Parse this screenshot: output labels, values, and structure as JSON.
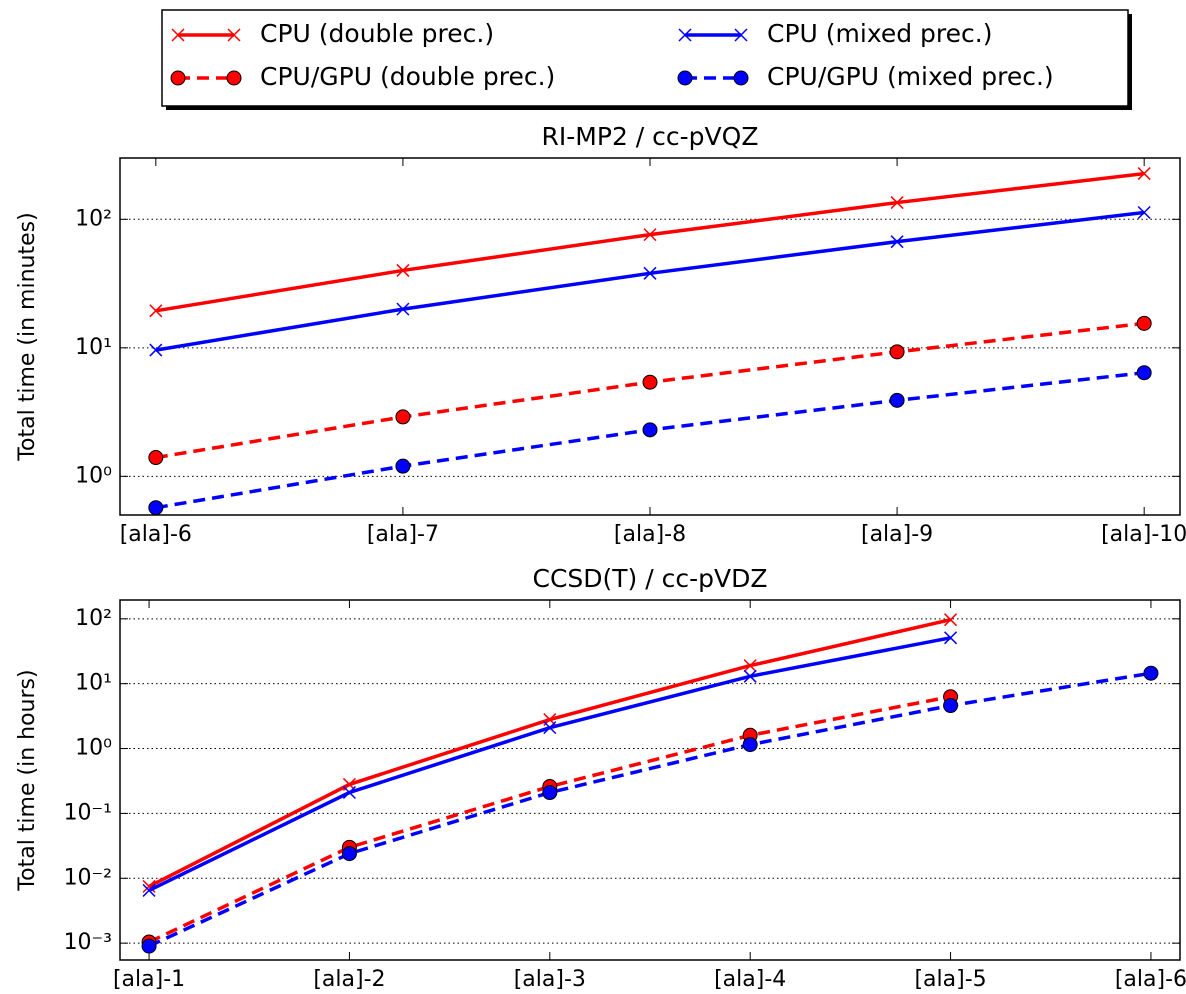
{
  "chart_data": [
    {
      "type": "line",
      "title": "RI-MP2 / cc-pVQZ",
      "y_label": "Total time (in minutes)",
      "legend": "top",
      "log_y": true,
      "grid": true,
      "categories": [
        "[ala]-6",
        "[ala]-7",
        "[ala]-8",
        "[ala]-9",
        "[ala]-10"
      ],
      "ylim": [
        0.5,
        300
      ],
      "yticks": [
        {
          "value": 1,
          "label": "10⁰"
        },
        {
          "value": 10,
          "label": "10¹"
        },
        {
          "value": 100,
          "label": "10²"
        }
      ],
      "series": [
        {
          "name": "CPU (double prec.)",
          "color": "#ff0000",
          "linestyle": "solid",
          "marker": "x",
          "values": [
            19.4,
            40,
            76,
            135,
            227
          ]
        },
        {
          "name": "CPU (mixed prec.)",
          "color": "#0000ff",
          "linestyle": "solid",
          "marker": "x",
          "values": [
            9.6,
            20,
            38,
            67,
            113
          ]
        },
        {
          "name": "CPU/GPU (double prec.)",
          "color": "#ff0000",
          "linestyle": "dashed",
          "marker": "o",
          "values": [
            1.4,
            2.9,
            5.4,
            9.3,
            15.5
          ]
        },
        {
          "name": "CPU/GPU (mixed prec.)",
          "color": "#0000ff",
          "linestyle": "dashed",
          "marker": "o",
          "values": [
            0.57,
            1.2,
            2.3,
            3.9,
            6.4
          ]
        }
      ]
    },
    {
      "type": "line",
      "title": "CCSD(T) / cc-pVDZ",
      "y_label": "Total time (in hours)",
      "log_y": true,
      "grid": true,
      "categories": [
        "[ala]-1",
        "[ala]-2",
        "[ala]-3",
        "[ala]-4",
        "[ala]-5",
        "[ala]-6"
      ],
      "ylim": [
        0.00055,
        195
      ],
      "yticks": [
        {
          "value": 0.001,
          "label": "10⁻³"
        },
        {
          "value": 0.01,
          "label": "10⁻²"
        },
        {
          "value": 0.1,
          "label": "10⁻¹"
        },
        {
          "value": 1,
          "label": "10⁰"
        },
        {
          "value": 10,
          "label": "10¹"
        },
        {
          "value": 100,
          "label": "10²"
        }
      ],
      "series": [
        {
          "color": "#ff0000",
          "linestyle": "solid",
          "marker": "x",
          "values": [
            0.0075,
            0.28,
            2.8,
            19,
            97,
            null
          ]
        },
        {
          "color": "#0000ff",
          "linestyle": "solid",
          "marker": "x",
          "values": [
            0.0065,
            0.21,
            2.1,
            13,
            51,
            null
          ]
        },
        {
          "color": "#ff0000",
          "linestyle": "dashed",
          "marker": "o",
          "values": [
            0.00104,
            0.03,
            0.26,
            1.6,
            6.3,
            null
          ]
        },
        {
          "color": "#0000ff",
          "linestyle": "dashed",
          "marker": "o",
          "values": [
            0.0009,
            0.024,
            0.21,
            1.15,
            4.6,
            14.5
          ]
        }
      ]
    }
  ]
}
